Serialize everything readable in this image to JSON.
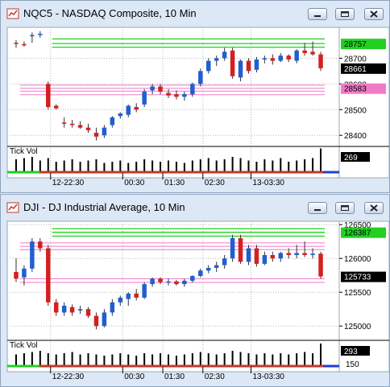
{
  "windows": [
    {
      "title": "NQC5 - NASDAQ Composite, 10 Min",
      "buttons": [
        "minimize-icon",
        "restore-icon",
        "close-icon"
      ]
    },
    {
      "title": "DJI - DJ Industrial Average, 10 Min",
      "buttons": [
        "minimize-icon",
        "restore-icon",
        "close-icon"
      ]
    }
  ],
  "colors": {
    "up_candle": "#1f5fd0",
    "down_candle": "#d42020",
    "green_level": "#1fd11f",
    "pink_level": "#f07ac8",
    "volume_bar": "#000000",
    "grid": "#b8b8b8",
    "last_price_label_bg": "#000000",
    "green_label_bg": "#22d022",
    "pink_label_bg": "#f07ac8"
  },
  "chart_data": [
    {
      "type": "candlestick",
      "symbol": "NQC5",
      "title": "NQC5 - NASDAQ Composite, 10 Min",
      "y_ticks": [
        28400,
        28500,
        28600,
        28700
      ],
      "ylim": [
        28360,
        28820
      ],
      "x_ticks": [
        "12-22:30",
        "00:30",
        "01:30",
        "02:30",
        "13-03:30"
      ],
      "x_tick_index": [
        4.3,
        13.3,
        18.3,
        23.3,
        29.3
      ],
      "level_lines": {
        "green": [
          28743,
          28757,
          28775
        ],
        "pink": [
          28558,
          28572,
          28583,
          28595
        ]
      },
      "labels": {
        "green": "28757",
        "last": "28661",
        "pink": "28583"
      },
      "candles": [
        {
          "o": 28760,
          "h": 28770,
          "l": 28740,
          "c": 28758
        },
        {
          "o": 28755,
          "h": 28765,
          "l": 28745,
          "c": 28750
        },
        {
          "o": 28790,
          "h": 28800,
          "l": 28760,
          "c": 28790
        },
        {
          "o": 28790,
          "h": 28805,
          "l": 28780,
          "c": 28795
        },
        {
          "o": 28600,
          "h": 28610,
          "l": 28500,
          "c": 28510
        },
        {
          "o": 28515,
          "h": 28520,
          "l": 28500,
          "c": 28505
        },
        {
          "o": 28450,
          "h": 28470,
          "l": 28430,
          "c": 28445
        },
        {
          "o": 28445,
          "h": 28460,
          "l": 28430,
          "c": 28440
        },
        {
          "o": 28440,
          "h": 28455,
          "l": 28425,
          "c": 28430
        },
        {
          "o": 28430,
          "h": 28445,
          "l": 28410,
          "c": 28420
        },
        {
          "o": 28410,
          "h": 28430,
          "l": 28380,
          "c": 28395
        },
        {
          "o": 28400,
          "h": 28440,
          "l": 28390,
          "c": 28430
        },
        {
          "o": 28440,
          "h": 28475,
          "l": 28430,
          "c": 28470
        },
        {
          "o": 28475,
          "h": 28490,
          "l": 28465,
          "c": 28485
        },
        {
          "o": 28480,
          "h": 28520,
          "l": 28470,
          "c": 28515
        },
        {
          "o": 28510,
          "h": 28525,
          "l": 28490,
          "c": 28500
        },
        {
          "o": 28520,
          "h": 28580,
          "l": 28510,
          "c": 28570
        },
        {
          "o": 28575,
          "h": 28600,
          "l": 28560,
          "c": 28590
        },
        {
          "o": 28590,
          "h": 28600,
          "l": 28560,
          "c": 28570
        },
        {
          "o": 28565,
          "h": 28580,
          "l": 28545,
          "c": 28555
        },
        {
          "o": 28560,
          "h": 28575,
          "l": 28540,
          "c": 28550
        },
        {
          "o": 28550,
          "h": 28570,
          "l": 28535,
          "c": 28560
        },
        {
          "o": 28560,
          "h": 28605,
          "l": 28550,
          "c": 28600
        },
        {
          "o": 28600,
          "h": 28660,
          "l": 28590,
          "c": 28650
        },
        {
          "o": 28650,
          "h": 28700,
          "l": 28640,
          "c": 28690
        },
        {
          "o": 28690,
          "h": 28710,
          "l": 28670,
          "c": 28700
        },
        {
          "o": 28700,
          "h": 28740,
          "l": 28690,
          "c": 28725
        },
        {
          "o": 28730,
          "h": 28740,
          "l": 28620,
          "c": 28630
        },
        {
          "o": 28625,
          "h": 28695,
          "l": 28610,
          "c": 28690
        },
        {
          "o": 28690,
          "h": 28700,
          "l": 28640,
          "c": 28650
        },
        {
          "o": 28655,
          "h": 28705,
          "l": 28645,
          "c": 28695
        },
        {
          "o": 28695,
          "h": 28710,
          "l": 28680,
          "c": 28700
        },
        {
          "o": 28700,
          "h": 28715,
          "l": 28675,
          "c": 28690
        },
        {
          "o": 28690,
          "h": 28720,
          "l": 28685,
          "c": 28710
        },
        {
          "o": 28710,
          "h": 28715,
          "l": 28685,
          "c": 28695
        },
        {
          "o": 28690,
          "h": 28735,
          "l": 28680,
          "c": 28730
        },
        {
          "o": 28730,
          "h": 28760,
          "l": 28710,
          "c": 28720
        },
        {
          "o": 28725,
          "h": 28765,
          "l": 28710,
          "c": 28715
        },
        {
          "o": 28715,
          "h": 28725,
          "l": 28650,
          "c": 28661
        }
      ],
      "volume": {
        "title": "Tick Vol",
        "last_label": "269",
        "bars": [
          0.5,
          0.55,
          0.6,
          0.45,
          0.55,
          0.4,
          0.45,
          0.5,
          0.4,
          0.45,
          0.5,
          0.35,
          0.4,
          0.45,
          0.35,
          0.4,
          0.5,
          0.45,
          0.4,
          0.45,
          0.4,
          0.35,
          0.45,
          0.5,
          0.55,
          0.45,
          0.5,
          0.6,
          0.55,
          0.45,
          0.4,
          0.5,
          0.45,
          0.55,
          0.4,
          0.45,
          0.5,
          0.55,
          0.95
        ]
      }
    },
    {
      "type": "candlestick",
      "symbol": "DJI",
      "title": "DJI - DJ Industrial Average, 10 Min",
      "y_ticks": [
        125000,
        125500,
        126000,
        126500
      ],
      "ylim": [
        124800,
        126550
      ],
      "x_ticks": [
        "12-22:30",
        "00:30",
        "01:30",
        "02:30",
        "13-03:30"
      ],
      "x_tick_index": [
        4.3,
        13.3,
        18.3,
        23.3,
        29.3
      ],
      "level_lines": {
        "green": [
          126330,
          126387,
          126440
        ],
        "pink": [
          125645,
          125700,
          126130,
          126180,
          126230
        ]
      },
      "labels": {
        "green": "126387",
        "last": "125733"
      },
      "candles": [
        {
          "o": 125800,
          "h": 126000,
          "l": 125650,
          "c": 125700
        },
        {
          "o": 125720,
          "h": 125900,
          "l": 125600,
          "c": 125850
        },
        {
          "o": 125850,
          "h": 126300,
          "l": 125800,
          "c": 126250
        },
        {
          "o": 126250,
          "h": 126300,
          "l": 126100,
          "c": 126150
        },
        {
          "o": 126150,
          "h": 126200,
          "l": 125300,
          "c": 125350
        },
        {
          "o": 125350,
          "h": 125400,
          "l": 125150,
          "c": 125200
        },
        {
          "o": 125200,
          "h": 125350,
          "l": 125150,
          "c": 125300
        },
        {
          "o": 125280,
          "h": 125320,
          "l": 125150,
          "c": 125200
        },
        {
          "o": 125230,
          "h": 125300,
          "l": 125180,
          "c": 125250
        },
        {
          "o": 125250,
          "h": 125280,
          "l": 125120,
          "c": 125150
        },
        {
          "o": 125150,
          "h": 125200,
          "l": 124950,
          "c": 125000
        },
        {
          "o": 125000,
          "h": 125250,
          "l": 124980,
          "c": 125200
        },
        {
          "o": 125200,
          "h": 125400,
          "l": 125150,
          "c": 125350
        },
        {
          "o": 125350,
          "h": 125450,
          "l": 125300,
          "c": 125420
        },
        {
          "o": 125400,
          "h": 125500,
          "l": 125300,
          "c": 125480
        },
        {
          "o": 125480,
          "h": 125550,
          "l": 125380,
          "c": 125420
        },
        {
          "o": 125420,
          "h": 125650,
          "l": 125400,
          "c": 125620
        },
        {
          "o": 125620,
          "h": 125720,
          "l": 125580,
          "c": 125700
        },
        {
          "o": 125700,
          "h": 125720,
          "l": 125620,
          "c": 125650
        },
        {
          "o": 125650,
          "h": 125700,
          "l": 125600,
          "c": 125660
        },
        {
          "o": 125660,
          "h": 125680,
          "l": 125600,
          "c": 125620
        },
        {
          "o": 125620,
          "h": 125700,
          "l": 125580,
          "c": 125670
        },
        {
          "o": 125670,
          "h": 125750,
          "l": 125640,
          "c": 125740
        },
        {
          "o": 125740,
          "h": 125850,
          "l": 125720,
          "c": 125820
        },
        {
          "o": 125820,
          "h": 125900,
          "l": 125780,
          "c": 125860
        },
        {
          "o": 125860,
          "h": 125950,
          "l": 125800,
          "c": 125900
        },
        {
          "o": 125900,
          "h": 126050,
          "l": 125850,
          "c": 126000
        },
        {
          "o": 126000,
          "h": 126350,
          "l": 125950,
          "c": 126300
        },
        {
          "o": 126300,
          "h": 126350,
          "l": 125920,
          "c": 125950
        },
        {
          "o": 125950,
          "h": 126200,
          "l": 125900,
          "c": 126150
        },
        {
          "o": 126150,
          "h": 126200,
          "l": 125880,
          "c": 125920
        },
        {
          "o": 125920,
          "h": 126100,
          "l": 125900,
          "c": 126050
        },
        {
          "o": 126050,
          "h": 126100,
          "l": 125950,
          "c": 126000
        },
        {
          "o": 126000,
          "h": 126100,
          "l": 125950,
          "c": 126080
        },
        {
          "o": 126080,
          "h": 126150,
          "l": 126000,
          "c": 126050
        },
        {
          "o": 126050,
          "h": 126200,
          "l": 126000,
          "c": 126080
        },
        {
          "o": 126080,
          "h": 126250,
          "l": 126020,
          "c": 126050
        },
        {
          "o": 126050,
          "h": 126150,
          "l": 126000,
          "c": 126070
        },
        {
          "o": 126070,
          "h": 126100,
          "l": 125700,
          "c": 125733
        }
      ],
      "volume": {
        "title": "Tick Vol",
        "last_label": "293",
        "scale_label": "150",
        "bars": [
          0.45,
          0.5,
          0.55,
          0.6,
          0.5,
          0.45,
          0.5,
          0.55,
          0.45,
          0.5,
          0.45,
          0.4,
          0.45,
          0.5,
          0.45,
          0.4,
          0.5,
          0.45,
          0.5,
          0.45,
          0.4,
          0.45,
          0.5,
          0.55,
          0.5,
          0.45,
          0.5,
          0.6,
          0.55,
          0.5,
          0.45,
          0.5,
          0.45,
          0.5,
          0.45,
          0.5,
          0.55,
          0.5,
          0.9
        ]
      }
    }
  ]
}
